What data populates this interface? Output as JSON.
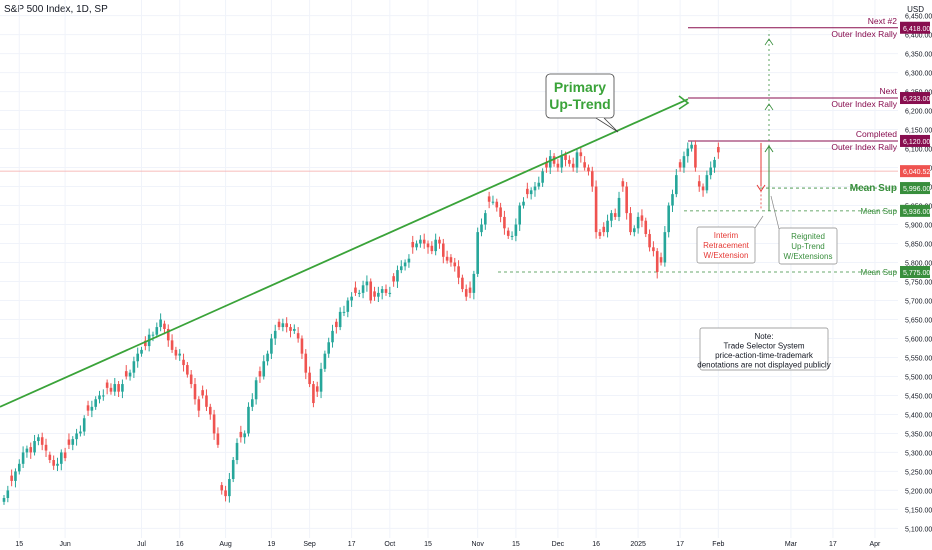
{
  "header": {
    "title": "S&P 500 Index, 1D, SP",
    "currency": "USD"
  },
  "colors": {
    "up": "#26a69a",
    "down": "#ef5350",
    "trend": "#3aa339",
    "maroon": "#880e4f",
    "green_label": "#388e3c",
    "red_label": "#e53935",
    "grid": "#f0f3fa"
  },
  "chart_data": {
    "type": "candlestick",
    "ylim": [
      5080,
      6470
    ],
    "y_ticks": [
      "6,450.00",
      "6,400.00",
      "6,350.00",
      "6,300.00",
      "6,250.00",
      "6,200.00",
      "6,150.00",
      "6,100.00",
      "6,050.00",
      "6,000.00",
      "5,950.00",
      "5,900.00",
      "5,850.00",
      "5,800.00",
      "5,750.00",
      "5,700.00",
      "5,650.00",
      "5,600.00",
      "5,550.00",
      "5,500.00",
      "5,450.00",
      "5,400.00",
      "5,350.00",
      "5,300.00",
      "5,250.00",
      "5,200.00",
      "5,150.00",
      "5,100.00"
    ],
    "x_ticks": [
      {
        "label": "15",
        "bar": 4
      },
      {
        "label": "Jun",
        "bar": 16
      },
      {
        "label": "Jul",
        "bar": 36
      },
      {
        "label": "16",
        "bar": 46
      },
      {
        "label": "Aug",
        "bar": 58
      },
      {
        "label": "19",
        "bar": 70
      },
      {
        "label": "Sep",
        "bar": 80
      },
      {
        "label": "17",
        "bar": 91
      },
      {
        "label": "Oct",
        "bar": 101
      },
      {
        "label": "15",
        "bar": 111
      },
      {
        "label": "Nov",
        "bar": 124
      },
      {
        "label": "15",
        "bar": 134
      },
      {
        "label": "Dec",
        "bar": 145
      },
      {
        "label": "16",
        "bar": 155
      },
      {
        "label": "2025",
        "bar": 166
      },
      {
        "label": "17",
        "bar": 177
      },
      {
        "label": "Feb",
        "bar": 187
      },
      {
        "label": "Mar",
        "bar": 206
      },
      {
        "label": "17",
        "bar": 217
      },
      {
        "label": "Apr",
        "bar": 228
      }
    ],
    "closes": [
      5180,
      5200,
      5225,
      5250,
      5270,
      5300,
      5310,
      5300,
      5330,
      5340,
      5320,
      5305,
      5280,
      5265,
      5270,
      5300,
      5285,
      5320,
      5335,
      5350,
      5355,
      5390,
      5410,
      5420,
      5440,
      5450,
      5450,
      5470,
      5460,
      5480,
      5460,
      5480,
      5500,
      5510,
      5540,
      5560,
      5570,
      5580,
      5610,
      5610,
      5630,
      5650,
      5625,
      5595,
      5570,
      5555,
      5560,
      5530,
      5505,
      5480,
      5440,
      5410,
      5450,
      5420,
      5400,
      5350,
      5320,
      5200,
      5185,
      5230,
      5280,
      5325,
      5340,
      5350,
      5420,
      5440,
      5490,
      5500,
      5540,
      5560,
      5600,
      5620,
      5630,
      5640,
      5630,
      5620,
      5625,
      5600,
      5560,
      5510,
      5480,
      5430,
      5460,
      5520,
      5560,
      5590,
      5620,
      5630,
      5670,
      5670,
      5700,
      5710,
      5720,
      5720,
      5740,
      5750,
      5700,
      5710,
      5720,
      5730,
      5720,
      5720,
      5750,
      5780,
      5790,
      5800,
      5810,
      5840,
      5850,
      5860,
      5850,
      5840,
      5830,
      5860,
      5850,
      5815,
      5805,
      5800,
      5790,
      5760,
      5730,
      5710,
      5720,
      5770,
      5880,
      5900,
      5930,
      5960,
      5960,
      5945,
      5920,
      5890,
      5870,
      5870,
      5900,
      5950,
      5960,
      5980,
      5990,
      6000,
      6010,
      6040,
      6050,
      6080,
      6060,
      6050,
      6080,
      6070,
      6060,
      6050,
      6090,
      6080,
      6050,
      6040,
      6000,
      5880,
      5870,
      5880,
      5910,
      5930,
      5920,
      5970,
      6000,
      5930,
      5880,
      5890,
      5920,
      5910,
      5875,
      5840,
      5830,
      5775,
      5800,
      5880,
      5950,
      5980,
      6030,
      6050,
      6080,
      6100,
      6110,
      6050,
      6000,
      5990,
      6030,
      6050,
      6070,
      6090
    ],
    "candles_note": "Daily OHLC candles, approx. May 2024 – Feb 2025",
    "trendline": {
      "label": "Primary\nUp-Trend"
    },
    "levels": [
      {
        "value": 6418,
        "label_lines": [
          "Next #2",
          "Outer Index Rally"
        ],
        "price_tag": "6,418.00",
        "style": "maroon"
      },
      {
        "value": 6233,
        "label_lines": [
          "Next",
          "Outer Index Rally"
        ],
        "price_tag": "6,233.00",
        "style": "maroon"
      },
      {
        "value": 6120,
        "label_lines": [
          "Completed",
          "Outer Index Rally"
        ],
        "price_tag": "6,120.00",
        "style": "maroon"
      },
      {
        "value": 5996,
        "label_lines": [
          "Mean Sup"
        ],
        "price_tag": "5,996.00",
        "style": "green-bold"
      },
      {
        "value": 5936,
        "label_lines": [
          "Mean Sup"
        ],
        "price_tag": "5,936.00",
        "style": "green"
      },
      {
        "value": 5775,
        "label_lines": [
          "Mean Sup"
        ],
        "price_tag": "5,775.00",
        "style": "green"
      }
    ],
    "last_price": {
      "value": 6040.52,
      "tag": "6,040.52"
    },
    "annotations": {
      "interim": [
        "Interim",
        "Retracement",
        "W/Extension"
      ],
      "reignited": [
        "Reignited",
        "Up-Trend",
        "W/Extensions"
      ],
      "note": [
        "Note:",
        "Trade Selector System",
        "price-action-time-trademark",
        "denotations are not displayed publicly"
      ]
    }
  }
}
